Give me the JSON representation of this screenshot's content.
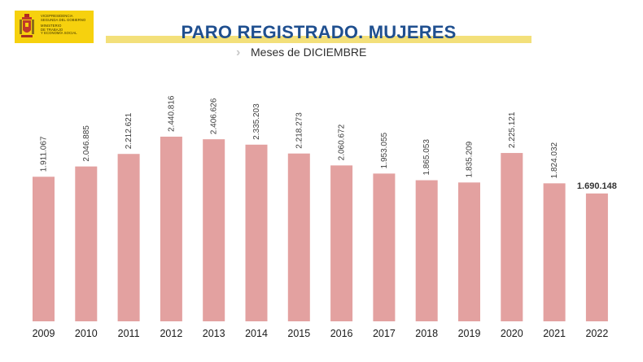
{
  "header": {
    "logo_lines": [
      "VICEPRESIDENCIA",
      "SEGUNDA DEL GOBIERNO",
      "MINISTERIO",
      "DE TRABAJO",
      "Y ECONOMÍA SOCIAL"
    ]
  },
  "colors": {
    "bar": "#e3a1a0",
    "title": "#1f4f8f",
    "accent_bar": "#f3e07a",
    "logo_bg": "#f6d10e"
  },
  "chart_data": {
    "type": "bar",
    "title": "PARO REGISTRADO. MUJERES",
    "subtitle": "Meses de DICIEMBRE",
    "xlabel": "",
    "ylabel": "",
    "ylim": [
      0,
      2440816
    ],
    "grid": false,
    "legend": "none",
    "categories": [
      "2009",
      "2010",
      "2011",
      "2012",
      "2013",
      "2014",
      "2015",
      "2016",
      "2017",
      "2018",
      "2019",
      "2020",
      "2021",
      "2022"
    ],
    "values": [
      1911067,
      2046885,
      2212621,
      2440816,
      2406626,
      2335203,
      2218273,
      2060672,
      1953055,
      1865053,
      1835209,
      2225121,
      1824032,
      1690148
    ],
    "value_labels": [
      "1.911.067",
      "2.046.885",
      "2.212.621",
      "2.440.816",
      "2.406.626",
      "2.335.203",
      "2.218.273",
      "2.060.672",
      "1.953.055",
      "1.865.053",
      "1.835.209",
      "2.225.121",
      "1.824.032",
      "1.690.148"
    ]
  }
}
